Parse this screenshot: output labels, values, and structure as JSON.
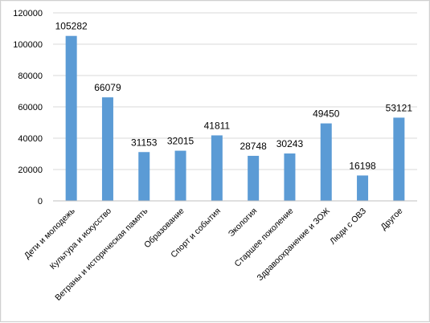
{
  "chart_data": {
    "type": "bar",
    "title": "",
    "xlabel": "",
    "ylabel": "",
    "ylim": [
      0,
      120000
    ],
    "yticks": [
      0,
      20000,
      40000,
      60000,
      80000,
      100000,
      120000
    ],
    "grid": true,
    "legend": "none",
    "bar_color": "#5b9bd5",
    "grid_color": "#d9d9d9",
    "categories": [
      "Дети и молодежь",
      "Культура и искусство",
      "Ветраны и историческая память",
      "Образование",
      "Спорт и события",
      "Экология",
      "Старшее поколение",
      "Здравоохранение и ЗОЖ",
      "Люди с ОВЗ",
      "Другое"
    ],
    "values": [
      105282,
      66079,
      31153,
      32015,
      41811,
      28748,
      30243,
      49450,
      16198,
      53121
    ],
    "data_labels": [
      "105282",
      "66079",
      "31153",
      "32015",
      "41811",
      "28748",
      "30243",
      "49450",
      "16198",
      "53121"
    ]
  }
}
